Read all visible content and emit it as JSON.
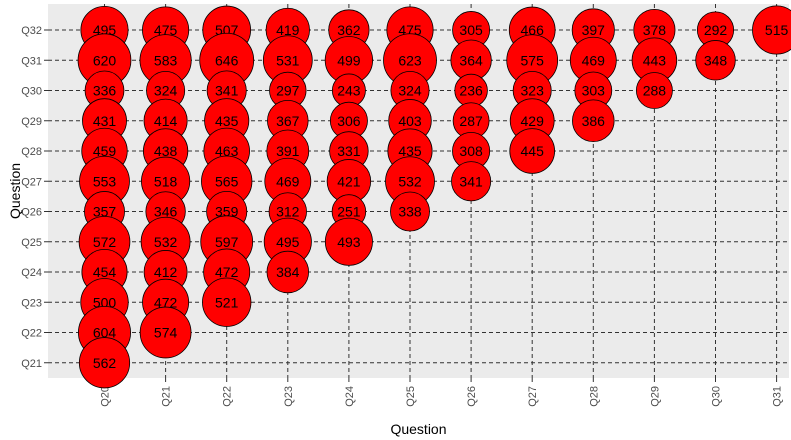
{
  "chart_data": {
    "type": "scatter",
    "title": "",
    "xlabel": "Question",
    "ylabel": "Question",
    "x_categories": [
      "Q20",
      "Q21",
      "Q22",
      "Q23",
      "Q24",
      "Q25",
      "Q26",
      "Q27",
      "Q28",
      "Q29",
      "Q30",
      "Q31"
    ],
    "y_categories": [
      "Q21",
      "Q22",
      "Q23",
      "Q24",
      "Q25",
      "Q26",
      "Q27",
      "Q28",
      "Q29",
      "Q30",
      "Q31",
      "Q32"
    ],
    "marker_color": "#ff0000",
    "grid": true,
    "points": [
      {
        "x": "Q20",
        "y": "Q32",
        "value": 495
      },
      {
        "x": "Q21",
        "y": "Q32",
        "value": 475
      },
      {
        "x": "Q22",
        "y": "Q32",
        "value": 507
      },
      {
        "x": "Q23",
        "y": "Q32",
        "value": 419
      },
      {
        "x": "Q24",
        "y": "Q32",
        "value": 362
      },
      {
        "x": "Q25",
        "y": "Q32",
        "value": 475
      },
      {
        "x": "Q26",
        "y": "Q32",
        "value": 305
      },
      {
        "x": "Q27",
        "y": "Q32",
        "value": 466
      },
      {
        "x": "Q28",
        "y": "Q32",
        "value": 397
      },
      {
        "x": "Q29",
        "y": "Q32",
        "value": 378
      },
      {
        "x": "Q30",
        "y": "Q32",
        "value": 292
      },
      {
        "x": "Q31",
        "y": "Q32",
        "value": 515
      },
      {
        "x": "Q20",
        "y": "Q31",
        "value": 620
      },
      {
        "x": "Q21",
        "y": "Q31",
        "value": 583
      },
      {
        "x": "Q22",
        "y": "Q31",
        "value": 646
      },
      {
        "x": "Q23",
        "y": "Q31",
        "value": 531
      },
      {
        "x": "Q24",
        "y": "Q31",
        "value": 499
      },
      {
        "x": "Q25",
        "y": "Q31",
        "value": 623
      },
      {
        "x": "Q26",
        "y": "Q31",
        "value": 364
      },
      {
        "x": "Q27",
        "y": "Q31",
        "value": 575
      },
      {
        "x": "Q28",
        "y": "Q31",
        "value": 469
      },
      {
        "x": "Q29",
        "y": "Q31",
        "value": 443
      },
      {
        "x": "Q30",
        "y": "Q31",
        "value": 348
      },
      {
        "x": "Q20",
        "y": "Q30",
        "value": 336
      },
      {
        "x": "Q21",
        "y": "Q30",
        "value": 324
      },
      {
        "x": "Q22",
        "y": "Q30",
        "value": 341
      },
      {
        "x": "Q23",
        "y": "Q30",
        "value": 297
      },
      {
        "x": "Q24",
        "y": "Q30",
        "value": 243
      },
      {
        "x": "Q25",
        "y": "Q30",
        "value": 324
      },
      {
        "x": "Q26",
        "y": "Q30",
        "value": 236
      },
      {
        "x": "Q27",
        "y": "Q30",
        "value": 323
      },
      {
        "x": "Q28",
        "y": "Q30",
        "value": 303
      },
      {
        "x": "Q29",
        "y": "Q30",
        "value": 288
      },
      {
        "x": "Q20",
        "y": "Q29",
        "value": 431
      },
      {
        "x": "Q21",
        "y": "Q29",
        "value": 414
      },
      {
        "x": "Q22",
        "y": "Q29",
        "value": 435
      },
      {
        "x": "Q23",
        "y": "Q29",
        "value": 367
      },
      {
        "x": "Q24",
        "y": "Q29",
        "value": 306
      },
      {
        "x": "Q25",
        "y": "Q29",
        "value": 403
      },
      {
        "x": "Q26",
        "y": "Q29",
        "value": 287
      },
      {
        "x": "Q27",
        "y": "Q29",
        "value": 429
      },
      {
        "x": "Q28",
        "y": "Q29",
        "value": 386
      },
      {
        "x": "Q20",
        "y": "Q28",
        "value": 459
      },
      {
        "x": "Q21",
        "y": "Q28",
        "value": 438
      },
      {
        "x": "Q22",
        "y": "Q28",
        "value": 463
      },
      {
        "x": "Q23",
        "y": "Q28",
        "value": 391
      },
      {
        "x": "Q24",
        "y": "Q28",
        "value": 331
      },
      {
        "x": "Q25",
        "y": "Q28",
        "value": 435
      },
      {
        "x": "Q26",
        "y": "Q28",
        "value": 308
      },
      {
        "x": "Q27",
        "y": "Q28",
        "value": 445
      },
      {
        "x": "Q20",
        "y": "Q27",
        "value": 553
      },
      {
        "x": "Q21",
        "y": "Q27",
        "value": 518
      },
      {
        "x": "Q22",
        "y": "Q27",
        "value": 565
      },
      {
        "x": "Q23",
        "y": "Q27",
        "value": 469
      },
      {
        "x": "Q24",
        "y": "Q27",
        "value": 421
      },
      {
        "x": "Q25",
        "y": "Q27",
        "value": 532
      },
      {
        "x": "Q26",
        "y": "Q27",
        "value": 341
      },
      {
        "x": "Q20",
        "y": "Q26",
        "value": 357
      },
      {
        "x": "Q21",
        "y": "Q26",
        "value": 346
      },
      {
        "x": "Q22",
        "y": "Q26",
        "value": 359
      },
      {
        "x": "Q23",
        "y": "Q26",
        "value": 312
      },
      {
        "x": "Q24",
        "y": "Q26",
        "value": 251
      },
      {
        "x": "Q25",
        "y": "Q26",
        "value": 338
      },
      {
        "x": "Q20",
        "y": "Q25",
        "value": 572
      },
      {
        "x": "Q21",
        "y": "Q25",
        "value": 532
      },
      {
        "x": "Q22",
        "y": "Q25",
        "value": 597
      },
      {
        "x": "Q23",
        "y": "Q25",
        "value": 495
      },
      {
        "x": "Q24",
        "y": "Q25",
        "value": 493
      },
      {
        "x": "Q20",
        "y": "Q24",
        "value": 454
      },
      {
        "x": "Q21",
        "y": "Q24",
        "value": 412
      },
      {
        "x": "Q22",
        "y": "Q24",
        "value": 472
      },
      {
        "x": "Q23",
        "y": "Q24",
        "value": 384
      },
      {
        "x": "Q20",
        "y": "Q23",
        "value": 500
      },
      {
        "x": "Q21",
        "y": "Q23",
        "value": 472
      },
      {
        "x": "Q22",
        "y": "Q23",
        "value": 521
      },
      {
        "x": "Q20",
        "y": "Q22",
        "value": 604
      },
      {
        "x": "Q21",
        "y": "Q22",
        "value": 574
      },
      {
        "x": "Q20",
        "y": "Q21",
        "value": 562
      }
    ]
  }
}
